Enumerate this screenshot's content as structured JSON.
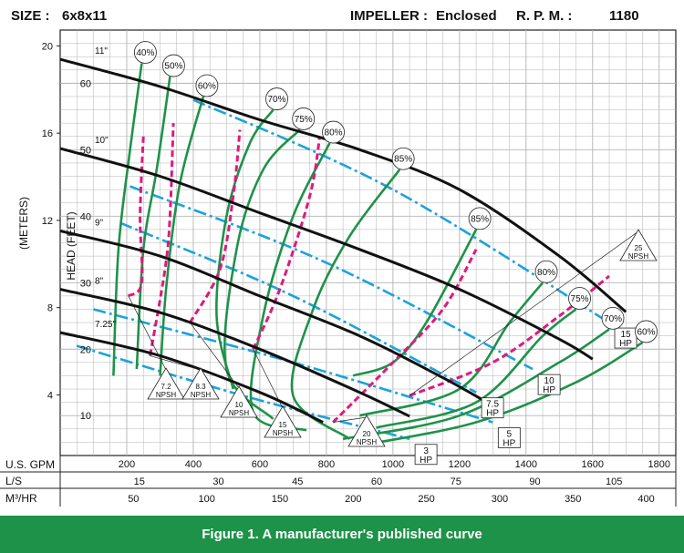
{
  "header": {
    "size_label": "SIZE :",
    "size_value": "6x8x11",
    "impeller_label": "IMPELLER :",
    "impeller_value": "Enclosed",
    "rpm_label": "R. P. M. :",
    "rpm_value": "1180"
  },
  "caption": "Figure 1. A manufacturer's published curve",
  "colors": {
    "head_curve": "#111111",
    "efficiency": "#1e9249",
    "npsh": "#e0197d",
    "horsepower": "#1aa3dc",
    "grid": "#b3b3b3",
    "caption_bg": "#1e9249"
  },
  "chart_data": {
    "type": "line",
    "grid": true,
    "xlim": [
      0,
      1850
    ],
    "ylim": [
      4,
      68
    ],
    "y_axis_feet": {
      "label": "HEAD (FEET)",
      "ticks": [
        10,
        20,
        30,
        40,
        50,
        60
      ]
    },
    "y_axis_meters": {
      "label": "(METERS)",
      "ticks": [
        4,
        8,
        12,
        16,
        20
      ]
    },
    "x_axes": [
      {
        "label": "U.S. GPM",
        "ticks": [
          200,
          400,
          600,
          800,
          1000,
          1200,
          1400,
          1600,
          1800
        ]
      },
      {
        "label": "L/S",
        "ticks": [
          15,
          30,
          45,
          60,
          75,
          90,
          105
        ]
      },
      {
        "label": "M³/HR",
        "ticks": [
          50,
          100,
          150,
          200,
          250,
          300,
          350,
          400
        ]
      }
    ],
    "head_curves": [
      {
        "name": "11\"",
        "points": [
          [
            0,
            63.6
          ],
          [
            300,
            59.5
          ],
          [
            600,
            54.5
          ],
          [
            900,
            50
          ],
          [
            1200,
            44
          ],
          [
            1500,
            34
          ],
          [
            1700,
            25.6
          ]
        ]
      },
      {
        "name": "10\"",
        "points": [
          [
            0,
            50.2
          ],
          [
            300,
            46
          ],
          [
            600,
            40.5
          ],
          [
            900,
            35
          ],
          [
            1200,
            29
          ],
          [
            1500,
            21.5
          ],
          [
            1600,
            18.5
          ]
        ]
      },
      {
        "name": "9\"",
        "points": [
          [
            0,
            37.8
          ],
          [
            300,
            34
          ],
          [
            600,
            28
          ],
          [
            900,
            22
          ],
          [
            1150,
            15.7
          ],
          [
            1300,
            11.5
          ]
        ]
      },
      {
        "name": "8\"",
        "points": [
          [
            0,
            29
          ],
          [
            300,
            25.5
          ],
          [
            600,
            20
          ],
          [
            900,
            13.5
          ],
          [
            1050,
            9.9
          ]
        ]
      },
      {
        "name": "7.25\"",
        "points": [
          [
            0,
            22.5
          ],
          [
            300,
            19
          ],
          [
            600,
            13.5
          ],
          [
            790,
            9
          ]
        ]
      }
    ],
    "efficiency_curves": [
      {
        "name": "40%",
        "points": [
          [
            160,
            16
          ],
          [
            175,
            35
          ],
          [
            210,
            50
          ],
          [
            245,
            63
          ]
        ]
      },
      {
        "name": "50%",
        "points": [
          [
            230,
            17
          ],
          [
            250,
            35
          ],
          [
            290,
            47
          ],
          [
            330,
            61
          ]
        ]
      },
      {
        "name": "60%",
        "points": [
          [
            300,
            16
          ],
          [
            320,
            30
          ],
          [
            360,
            45
          ],
          [
            430,
            58
          ]
        ]
      },
      {
        "name": "70%",
        "points": [
          [
            520,
            14
          ],
          [
            470,
            25
          ],
          [
            500,
            40
          ],
          [
            570,
            51
          ],
          [
            640,
            56
          ]
        ]
      },
      {
        "name": "75%",
        "points": [
          [
            640,
            9.5
          ],
          [
            500,
            17
          ],
          [
            530,
            35
          ],
          [
            610,
            47
          ],
          [
            720,
            53
          ]
        ]
      },
      {
        "name": "80%",
        "points": [
          [
            740,
            7.8
          ],
          [
            580,
            10.5
          ],
          [
            610,
            25
          ],
          [
            700,
            40
          ],
          [
            810,
            51
          ]
        ]
      },
      {
        "name": "85%",
        "points": [
          [
            870,
            6.5
          ],
          [
            700,
            13
          ],
          [
            760,
            26
          ],
          [
            870,
            37
          ],
          [
            1020,
            47
          ]
        ]
      },
      {
        "name": "85% ",
        "points": [
          [
            880,
            16
          ],
          [
            1000,
            18
          ],
          [
            1100,
            24
          ],
          [
            1250,
            38
          ]
        ]
      },
      {
        "name": "80% ",
        "points": [
          [
            900,
            10
          ],
          [
            1200,
            14
          ],
          [
            1350,
            24
          ],
          [
            1450,
            30
          ]
        ]
      },
      {
        "name": "75% ",
        "points": [
          [
            950,
            8.2
          ],
          [
            1250,
            12
          ],
          [
            1450,
            22
          ],
          [
            1550,
            26
          ]
        ]
      },
      {
        "name": "70% ",
        "points": [
          [
            850,
            6.5
          ],
          [
            1200,
            10
          ],
          [
            1500,
            18
          ],
          [
            1650,
            23
          ]
        ]
      },
      {
        "name": "60% ",
        "points": [
          [
            900,
            5.5
          ],
          [
            1250,
            9
          ],
          [
            1550,
            15
          ],
          [
            1750,
            21
          ]
        ]
      }
    ],
    "npsh_curves": [
      {
        "name": "7.2 NPSH",
        "points": [
          [
            205,
            28
          ],
          [
            245,
            30
          ],
          [
            240,
            40
          ],
          [
            250,
            52
          ]
        ]
      },
      {
        "name": "8.3 NPSH",
        "points": [
          [
            270,
            19
          ],
          [
            315,
            32
          ],
          [
            330,
            40
          ],
          [
            340,
            54
          ]
        ]
      },
      {
        "name": "10 NPSH",
        "points": [
          [
            390,
            24
          ],
          [
            480,
            32
          ],
          [
            520,
            43
          ],
          [
            540,
            53
          ]
        ]
      },
      {
        "name": "15 NPSH",
        "points": [
          [
            580,
            20
          ],
          [
            660,
            29
          ],
          [
            750,
            43
          ],
          [
            780,
            52
          ]
        ]
      },
      {
        "name": "20 NPSH",
        "points": [
          [
            820,
            9
          ],
          [
            1000,
            18
          ],
          [
            1150,
            26
          ],
          [
            1250,
            35
          ]
        ]
      },
      {
        "name": "25 NPSH",
        "points": [
          [
            1050,
            13
          ],
          [
            1300,
            18
          ],
          [
            1500,
            25
          ],
          [
            1650,
            31
          ]
        ]
      }
    ],
    "horsepower_lines": [
      {
        "name": "3 HP",
        "points": [
          [
            50,
            20.5
          ],
          [
            550,
            13
          ],
          [
            1050,
            6.5
          ]
        ]
      },
      {
        "name": "5 HP",
        "points": [
          [
            100,
            26
          ],
          [
            700,
            18
          ],
          [
            1300,
            9
          ]
        ]
      },
      {
        "name": "7.5 HP",
        "points": [
          [
            180,
            39
          ],
          [
            700,
            28
          ],
          [
            1250,
            13.5
          ]
        ]
      },
      {
        "name": "10 HP",
        "points": [
          [
            210,
            44.5
          ],
          [
            800,
            33
          ],
          [
            1420,
            17
          ]
        ]
      },
      {
        "name": "15 HP",
        "points": [
          [
            400,
            57.5
          ],
          [
            1000,
            44
          ],
          [
            1650,
            24
          ]
        ]
      }
    ]
  }
}
